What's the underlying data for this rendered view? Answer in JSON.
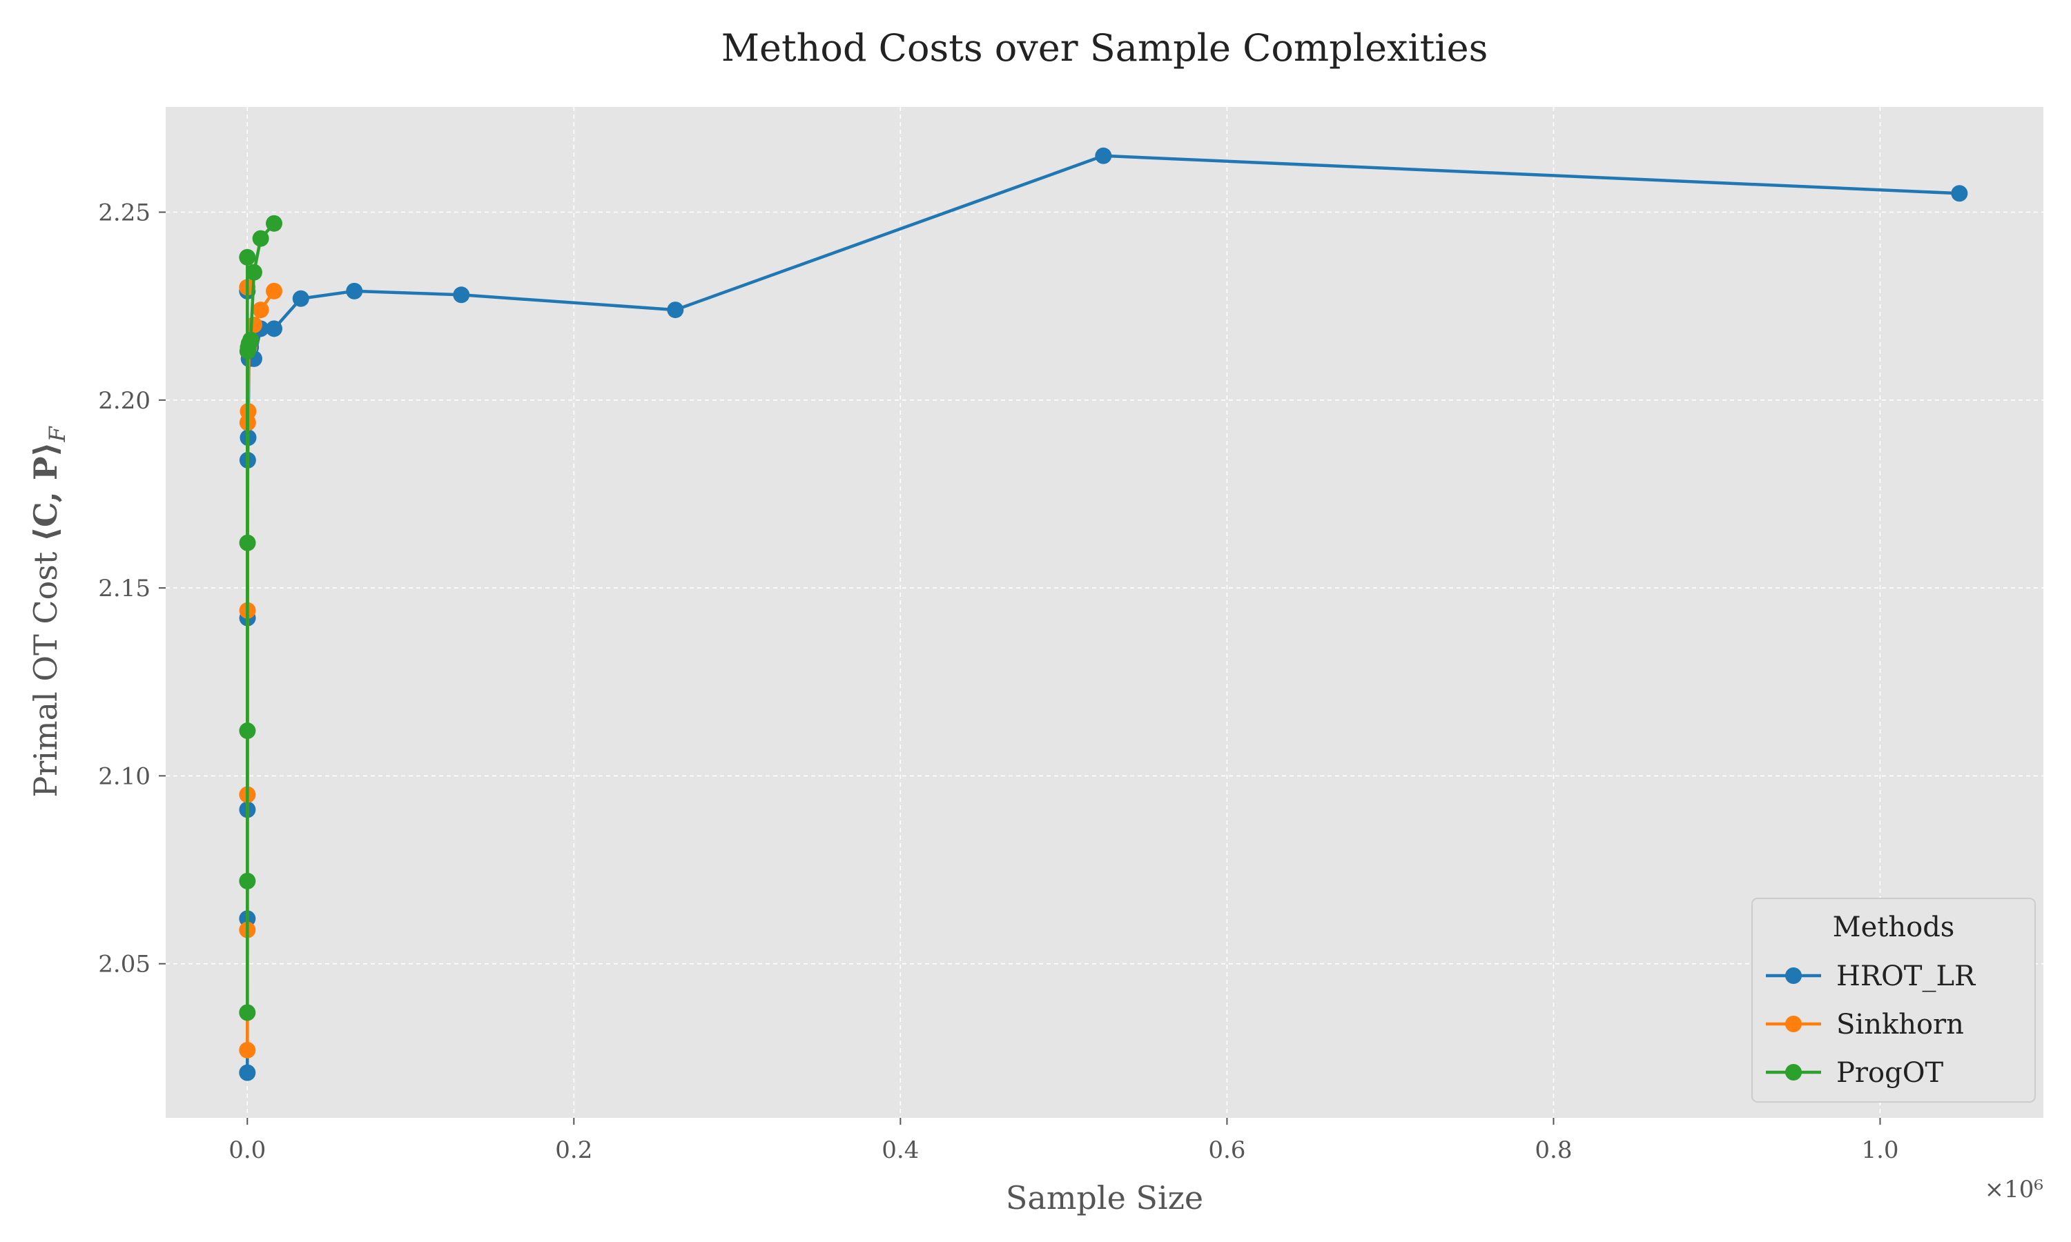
{
  "chart_data": {
    "type": "line",
    "title": "Method Costs over Sample Complexities",
    "xlabel": "Sample Size",
    "ylabel": "Primal OT Cost ⟨C, P⟩_F",
    "ylabel_prefix": "Primal OT Cost ",
    "ylabel_math": "⟨C, P⟩",
    "ylabel_sub": "F",
    "x_offset_label": "×10⁶",
    "xlim": [
      -50000,
      1100000
    ],
    "ylim": [
      2.009,
      2.278
    ],
    "x_ticks": [
      0,
      200000,
      400000,
      600000,
      800000,
      1000000
    ],
    "x_tick_labels": [
      "0.0",
      "0.2",
      "0.4",
      "0.6",
      "0.8",
      "1.0"
    ],
    "y_ticks": [
      2.05,
      2.1,
      2.15,
      2.2,
      2.25
    ],
    "y_tick_labels": [
      "2.05",
      "2.10",
      "2.15",
      "2.20",
      "2.25"
    ],
    "grid": true,
    "legend_title": "Methods",
    "legend_position": "lower-right",
    "series": [
      {
        "name": "HROT_LR",
        "color": "#1f77b4",
        "x": [
          8,
          16,
          32,
          64,
          128,
          256,
          512,
          1024,
          2048,
          4096,
          8192,
          16384,
          32768,
          65536,
          131072,
          262144,
          524288,
          1048576
        ],
        "y": [
          2.229,
          2.021,
          2.062,
          2.091,
          2.142,
          2.184,
          2.19,
          2.211,
          2.214,
          2.211,
          2.219,
          2.219,
          2.227,
          2.229,
          2.228,
          2.224,
          2.265,
          2.255
        ]
      },
      {
        "name": "Sinkhorn",
        "color": "#ff7f0e",
        "x": [
          8,
          16,
          32,
          64,
          128,
          256,
          512,
          1024,
          2048,
          4096,
          8192,
          16384
        ],
        "y": [
          2.23,
          2.027,
          2.059,
          2.095,
          2.144,
          2.194,
          2.197,
          2.214,
          2.216,
          2.22,
          2.224,
          2.229
        ]
      },
      {
        "name": "ProgOT",
        "color": "#2ca02c",
        "x": [
          8,
          16,
          32,
          64,
          128,
          256,
          512,
          1024,
          2048,
          4096,
          8192,
          16384
        ],
        "y": [
          2.238,
          2.037,
          2.072,
          2.112,
          2.162,
          2.213,
          2.214,
          2.215,
          2.216,
          2.234,
          2.243,
          2.247
        ]
      }
    ]
  }
}
